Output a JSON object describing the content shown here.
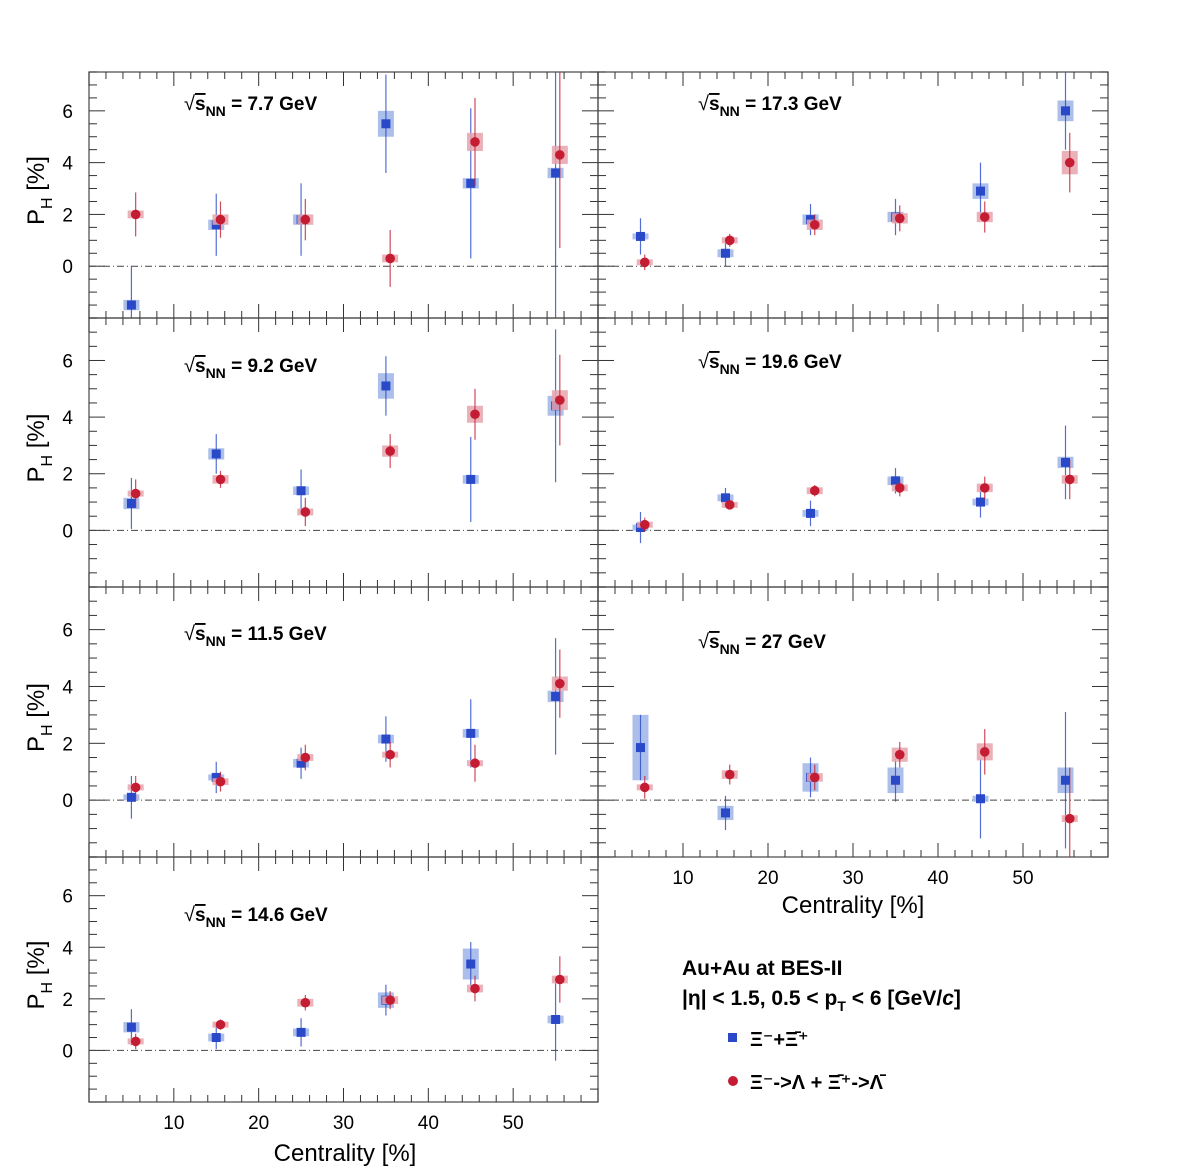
{
  "legend": {
    "header_line1": "Au+Au at BES-II",
    "header_line2": "|η| < 1.5, 0.5 < p",
    "header_line2_sub": "T",
    "header_line2_tail": " < 6 [GeV/",
    "header_line2_c": "c",
    "header_line2_end": "]",
    "series1_label": "Ξ⁻+Ξ̄⁺",
    "series2_label": "Ξ⁻->Λ + Ξ̄⁺->Λ̄"
  },
  "colors": {
    "series1": "#2a49c9",
    "series2": "#c41d33",
    "series1_band": "#9db4e8",
    "series2_band": "#e6a3ad"
  },
  "chart_data": [
    {
      "type": "scatter",
      "energy": "7.7 GeV",
      "ylabel": "P_H [%]",
      "ylim": [
        -2,
        7.5
      ],
      "xlim": [
        0,
        60
      ],
      "series": [
        {
          "x": [
            5,
            15,
            25,
            35,
            45,
            55
          ],
          "y": [
            -1.5,
            1.6,
            1.8,
            5.5,
            3.2,
            3.6
          ],
          "err": [
            1.5,
            1.2,
            1.4,
            1.9,
            2.9,
            6.5
          ],
          "sys": [
            0.2,
            0.2,
            0.2,
            0.5,
            0.2,
            0.2
          ]
        },
        {
          "x": [
            5.5,
            15.5,
            25.5,
            35.5,
            45.5,
            55.5
          ],
          "y": [
            2.0,
            1.8,
            1.8,
            0.3,
            4.8,
            4.3
          ],
          "err": [
            0.85,
            0.7,
            0.8,
            1.1,
            1.7,
            3.6
          ],
          "sys": [
            0.15,
            0.2,
            0.2,
            0.15,
            0.35,
            0.35
          ]
        }
      ]
    },
    {
      "type": "scatter",
      "energy": "9.2 GeV",
      "ylabel": "P_H [%]",
      "ylim": [
        -2,
        7.5
      ],
      "xlim": [
        0,
        60
      ],
      "series": [
        {
          "x": [
            5,
            15,
            25,
            35,
            45,
            55
          ],
          "y": [
            0.95,
            2.7,
            1.4,
            5.1,
            1.8,
            4.4
          ],
          "err": [
            0.9,
            0.7,
            0.75,
            1.05,
            1.5,
            2.7
          ],
          "sys": [
            0.2,
            0.2,
            0.15,
            0.45,
            0.15,
            0.35
          ]
        },
        {
          "x": [
            5.5,
            15.5,
            25.5,
            35.5,
            45.5,
            55.5
          ],
          "y": [
            1.3,
            1.8,
            0.65,
            2.8,
            4.1,
            4.6
          ],
          "err": [
            0.5,
            0.3,
            0.5,
            0.6,
            0.9,
            1.6
          ],
          "sys": [
            0.1,
            0.15,
            0.12,
            0.2,
            0.3,
            0.35
          ]
        }
      ]
    },
    {
      "type": "scatter",
      "energy": "11.5 GeV",
      "ylabel": "P_H [%]",
      "ylim": [
        -2,
        7.5
      ],
      "xlim": [
        0,
        60
      ],
      "series": [
        {
          "x": [
            5,
            15,
            25,
            35,
            45,
            55
          ],
          "y": [
            0.1,
            0.8,
            1.3,
            2.15,
            2.35,
            3.65
          ],
          "err": [
            0.75,
            0.55,
            0.55,
            0.8,
            1.2,
            2.05
          ],
          "sys": [
            0.1,
            0.1,
            0.15,
            0.15,
            0.15,
            0.2
          ]
        },
        {
          "x": [
            5.5,
            15.5,
            25.5,
            35.5,
            45.5,
            55.5
          ],
          "y": [
            0.45,
            0.65,
            1.5,
            1.6,
            1.3,
            4.1
          ],
          "err": [
            0.4,
            0.35,
            0.45,
            0.45,
            0.65,
            1.2
          ],
          "sys": [
            0.1,
            0.12,
            0.12,
            0.1,
            0.1,
            0.25
          ]
        }
      ]
    },
    {
      "type": "scatter",
      "energy": "14.6 GeV",
      "ylabel": "P_H [%]",
      "ylim": [
        -2,
        7.5
      ],
      "xlim": [
        0,
        60
      ],
      "series": [
        {
          "x": [
            5,
            15,
            25,
            35,
            45,
            55
          ],
          "y": [
            0.9,
            0.5,
            0.7,
            1.95,
            3.35,
            1.2
          ],
          "err": [
            0.7,
            0.45,
            0.55,
            0.6,
            0.85,
            1.6
          ],
          "sys": [
            0.2,
            0.15,
            0.15,
            0.3,
            0.6,
            0.15
          ]
        },
        {
          "x": [
            5.5,
            15.5,
            25.5,
            35.5,
            45.5,
            55.5
          ],
          "y": [
            0.35,
            1.0,
            1.85,
            1.95,
            2.4,
            2.75
          ],
          "err": [
            0.3,
            0.2,
            0.3,
            0.35,
            0.5,
            0.9
          ],
          "sys": [
            0.1,
            0.1,
            0.15,
            0.15,
            0.15,
            0.15
          ]
        }
      ]
    },
    {
      "type": "scatter",
      "energy": "17.3 GeV",
      "ylabel": "P_H [%]",
      "ylim": [
        -2,
        7.5
      ],
      "xlim": [
        0,
        60
      ],
      "series": [
        {
          "x": [
            5,
            15,
            25,
            35,
            45,
            55
          ],
          "y": [
            1.15,
            0.5,
            1.8,
            1.9,
            2.9,
            6.0
          ],
          "err": [
            0.7,
            0.5,
            0.6,
            0.7,
            1.1,
            1.5
          ],
          "sys": [
            0.1,
            0.15,
            0.2,
            0.2,
            0.3,
            0.4
          ]
        },
        {
          "x": [
            5.5,
            15.5,
            25.5,
            35.5,
            45.5,
            55.5
          ],
          "y": [
            0.15,
            1.0,
            1.6,
            1.85,
            1.9,
            4.0
          ],
          "err": [
            0.3,
            0.25,
            0.4,
            0.5,
            0.6,
            1.15
          ],
          "sys": [
            0.1,
            0.12,
            0.2,
            0.2,
            0.2,
            0.45
          ]
        }
      ]
    },
    {
      "type": "scatter",
      "energy": "19.6 GeV",
      "ylabel": "P_H [%]",
      "ylim": [
        -2,
        7.5
      ],
      "xlim": [
        0,
        60
      ],
      "series": [
        {
          "x": [
            5,
            15,
            25,
            35,
            45,
            55
          ],
          "y": [
            0.1,
            1.15,
            0.6,
            1.75,
            1.0,
            2.4
          ],
          "err": [
            0.55,
            0.35,
            0.45,
            0.45,
            0.55,
            1.3
          ],
          "sys": [
            0.1,
            0.12,
            0.12,
            0.15,
            0.12,
            0.2
          ]
        },
        {
          "x": [
            5.5,
            15.5,
            25.5,
            35.5,
            45.5,
            55.5
          ],
          "y": [
            0.2,
            0.9,
            1.4,
            1.5,
            1.5,
            1.8
          ],
          "err": [
            0.25,
            0.15,
            0.2,
            0.3,
            0.4,
            0.7
          ],
          "sys": [
            0.08,
            0.1,
            0.12,
            0.12,
            0.15,
            0.15
          ]
        }
      ]
    },
    {
      "type": "scatter",
      "energy": "27 GeV",
      "ylabel": "P_H [%]",
      "ylim": [
        -2,
        7.5
      ],
      "xlim": [
        0,
        60
      ],
      "series": [
        {
          "x": [
            5,
            15,
            25,
            35,
            45,
            55
          ],
          "y": [
            1.85,
            -0.45,
            0.8,
            0.7,
            0.05,
            0.7
          ],
          "err": [
            1.15,
            0.6,
            0.7,
            0.75,
            1.4,
            2.4
          ],
          "sys": [
            1.15,
            0.25,
            0.5,
            0.45,
            0.05,
            0.45
          ]
        },
        {
          "x": [
            5.5,
            15.5,
            25.5,
            35.5,
            45.5,
            55.5
          ],
          "y": [
            0.45,
            0.9,
            0.8,
            1.6,
            1.7,
            -0.65
          ],
          "err": [
            0.4,
            0.35,
            0.45,
            0.45,
            0.8,
            1.8
          ],
          "sys": [
            0.08,
            0.15,
            0.15,
            0.25,
            0.3,
            0.12
          ]
        }
      ]
    }
  ],
  "axes": {
    "ylabel": "P",
    "ylabel_sub": "H",
    "ylabel_unit": " [%]",
    "xlabel": "Centrality [%]",
    "x_ticks": [
      "10",
      "20",
      "30",
      "40",
      "50"
    ],
    "y_ticks": [
      "0",
      "2",
      "4",
      "6"
    ]
  }
}
